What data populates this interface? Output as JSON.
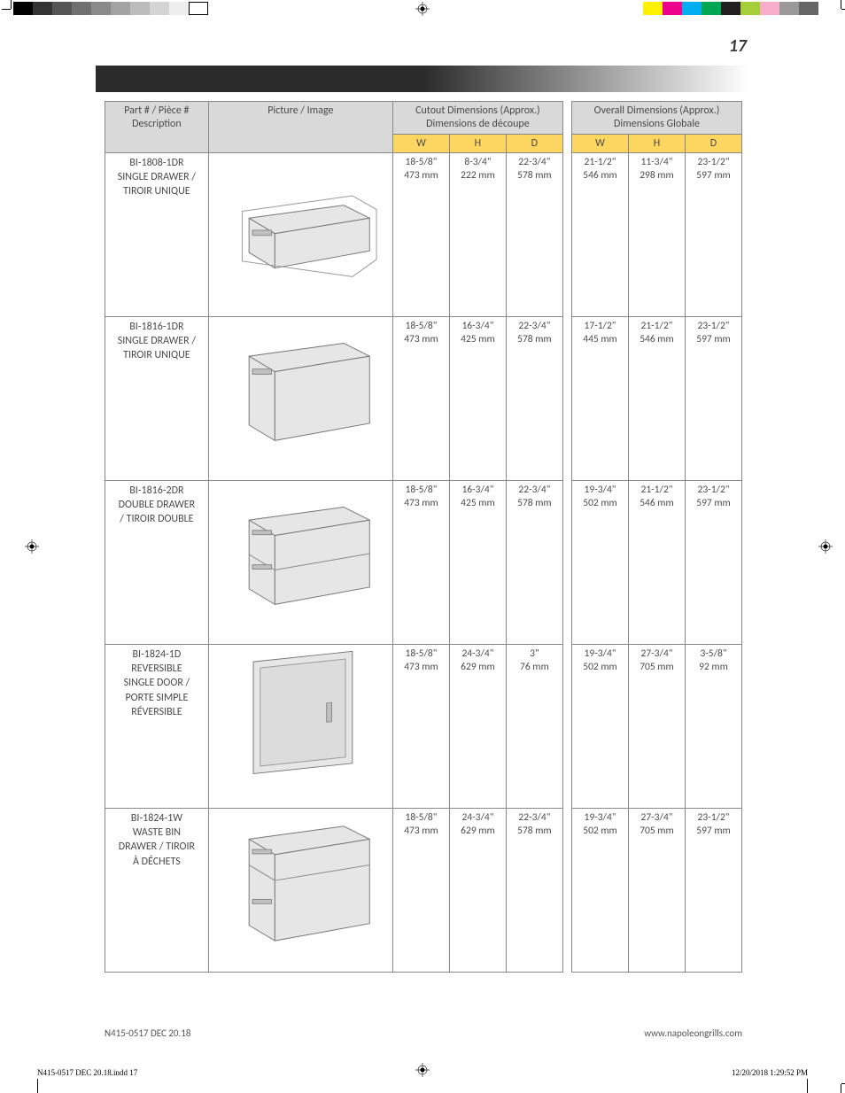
{
  "print_marks": {
    "gray_swatches": [
      "#000000",
      "#333333",
      "#555555",
      "#707070",
      "#8a8a8a",
      "#a3a3a3",
      "#bcbcbc",
      "#d4d4d4",
      "#ededed",
      "#ffffff"
    ],
    "color_swatches": [
      "#fff200",
      "#ec008c",
      "#00aeef",
      "#00a651",
      "#231f20",
      "#a6ce39",
      "#f7adc9",
      "#999999",
      "#666666"
    ],
    "gray_swatches_border": "#000000"
  },
  "page_number": "17",
  "doc_code": "N415-0517 DEC 20.18",
  "website": "www.napoleongrills.com",
  "indd_file": "N415-0517 DEC 20.18.indd   17",
  "indd_timestamp": "12/20/2018   1:29:52 PM",
  "table": {
    "headers": {
      "part": "Part # / Pièce #\nDescription",
      "picture": "Picture / Image",
      "cutout": "Cutout Dimensions (Approx.)\nDimensions de découpe",
      "overall": "Overall Dimensions  (Approx.)\nDimensions Globale",
      "w": "W",
      "h": "H",
      "d": "D"
    },
    "colors": {
      "header_bg": "#d9d9d9",
      "whd_bg": "#fdd561",
      "border": "#888888",
      "text": "#4a4a4a"
    },
    "rows": [
      {
        "part": "BI-1808-1DR\nSINGLE DRAWER /\nTIROIR UNIQUE",
        "illus": "single-short",
        "cutout": {
          "w_in": "18-5/8\"",
          "w_mm": "473 mm",
          "h_in": "8-3/4\"",
          "h_mm": "222 mm",
          "d_in": "22-3/4\"",
          "d_mm": "578 mm"
        },
        "overall": {
          "w_in": "21-1/2\"",
          "w_mm": "546 mm",
          "h_in": "11-3/4\"",
          "h_mm": "298 mm",
          "d_in": "23-1/2\"",
          "d_mm": "597 mm"
        }
      },
      {
        "part": "BI-1816-1DR\nSINGLE DRAWER  /\nTIROIR UNIQUE",
        "illus": "single-tall",
        "cutout": {
          "w_in": "18-5/8\"",
          "w_mm": "473 mm",
          "h_in": "16-3/4\"",
          "h_mm": "425 mm",
          "d_in": "22-3/4\"",
          "d_mm": "578 mm"
        },
        "overall": {
          "w_in": "17-1/2\"",
          "w_mm": "445 mm",
          "h_in": "21-1/2\"",
          "h_mm": "546 mm",
          "d_in": "23-1/2\"",
          "d_mm": "597 mm"
        }
      },
      {
        "part": "BI-1816-2DR\nDOUBLE DRAWER\n/ TIROIR DOUBLE",
        "illus": "double",
        "cutout": {
          "w_in": "18-5/8\"",
          "w_mm": "473 mm",
          "h_in": "16-3/4\"",
          "h_mm": "425 mm",
          "d_in": "22-3/4\"",
          "d_mm": "578 mm"
        },
        "overall": {
          "w_in": "19-3/4\"",
          "w_mm": "502 mm",
          "h_in": "21-1/2\"",
          "h_mm": "546 mm",
          "d_in": "23-1/2\"",
          "d_mm": "597 mm"
        }
      },
      {
        "part": "BI-1824-1D\nREVERSIBLE\nSINGLE DOOR /\nPORTE SIMPLE\nRÉVERSIBLE",
        "illus": "door",
        "cutout": {
          "w_in": "18-5/8\"",
          "w_mm": "473 mm",
          "h_in": "24-3/4\"",
          "h_mm": "629 mm",
          "d_in": "3\"",
          "d_mm": "76 mm"
        },
        "overall": {
          "w_in": "19-3/4\"",
          "w_mm": "502 mm",
          "h_in": "27-3/4\"",
          "h_mm": "705 mm",
          "d_in": "3-5/8\"",
          "d_mm": "92 mm"
        }
      },
      {
        "part": "BI-1824-1W\nWASTE BIN\nDRAWER / TIROIR\nÀ DÉCHETS",
        "illus": "waste",
        "cutout": {
          "w_in": "18-5/8\"",
          "w_mm": "473 mm",
          "h_in": "24-3/4\"",
          "h_mm": "629 mm",
          "d_in": "22-3/4\"",
          "d_mm": "578 mm"
        },
        "overall": {
          "w_in": "19-3/4\"",
          "w_mm": "502 mm",
          "h_in": "27-3/4\"",
          "h_mm": "705 mm",
          "d_in": "23-1/2\"",
          "d_mm": "597 mm"
        }
      }
    ]
  }
}
